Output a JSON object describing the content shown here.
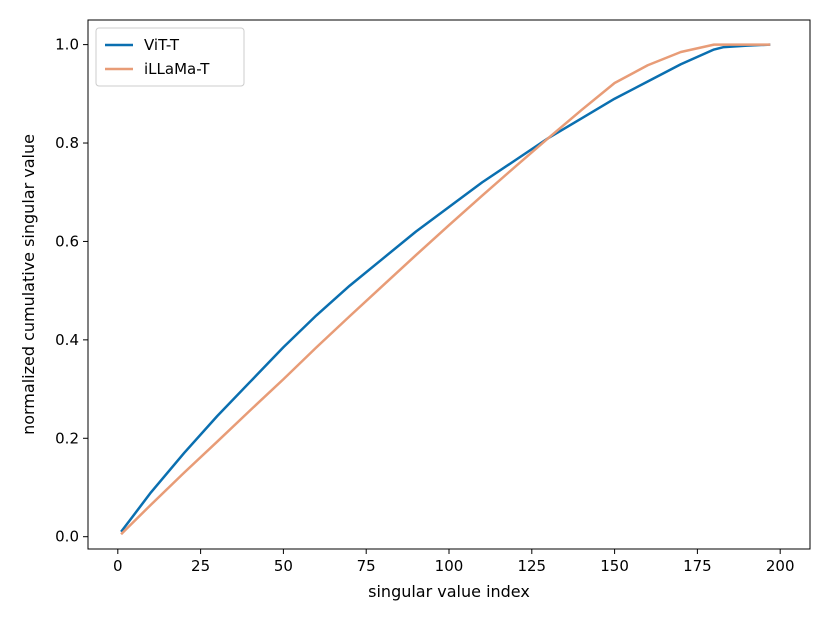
{
  "chart_data": {
    "type": "line",
    "xlabel": "singular value index",
    "ylabel": "normalized cumulative singular value",
    "xlim": [
      -9,
      209
    ],
    "ylim": [
      -0.025,
      1.05
    ],
    "xticks": [
      0,
      25,
      50,
      75,
      100,
      125,
      150,
      175,
      200
    ],
    "yticks": [
      0.0,
      0.2,
      0.4,
      0.6,
      0.8,
      1.0
    ],
    "xtick_labels": [
      "0",
      "25",
      "50",
      "75",
      "100",
      "125",
      "150",
      "175",
      "200"
    ],
    "ytick_labels": [
      "0.0",
      "0.2",
      "0.4",
      "0.6",
      "0.8",
      "1.0"
    ],
    "grid": false,
    "legend_position": "top-left",
    "series": [
      {
        "name": "ViT-T",
        "color": "#0a6fb0",
        "x": [
          1,
          10,
          20,
          30,
          40,
          50,
          60,
          70,
          80,
          90,
          100,
          110,
          120,
          130,
          140,
          150,
          160,
          170,
          180,
          183,
          190,
          197
        ],
        "y": [
          0.01,
          0.09,
          0.17,
          0.245,
          0.315,
          0.385,
          0.45,
          0.51,
          0.565,
          0.62,
          0.67,
          0.72,
          0.765,
          0.81,
          0.85,
          0.89,
          0.925,
          0.96,
          0.99,
          0.995,
          0.998,
          1.0
        ]
      },
      {
        "name": "iLLaMa-T",
        "color": "#e89c77",
        "x": [
          1,
          10,
          20,
          30,
          40,
          50,
          60,
          70,
          80,
          90,
          100,
          110,
          120,
          130,
          140,
          150,
          160,
          170,
          180,
          183,
          190,
          197
        ],
        "y": [
          0.005,
          0.065,
          0.13,
          0.193,
          0.257,
          0.32,
          0.385,
          0.448,
          0.51,
          0.572,
          0.633,
          0.693,
          0.752,
          0.81,
          0.867,
          0.922,
          0.958,
          0.985,
          1.0,
          1.0,
          1.0,
          1.0
        ]
      }
    ]
  }
}
